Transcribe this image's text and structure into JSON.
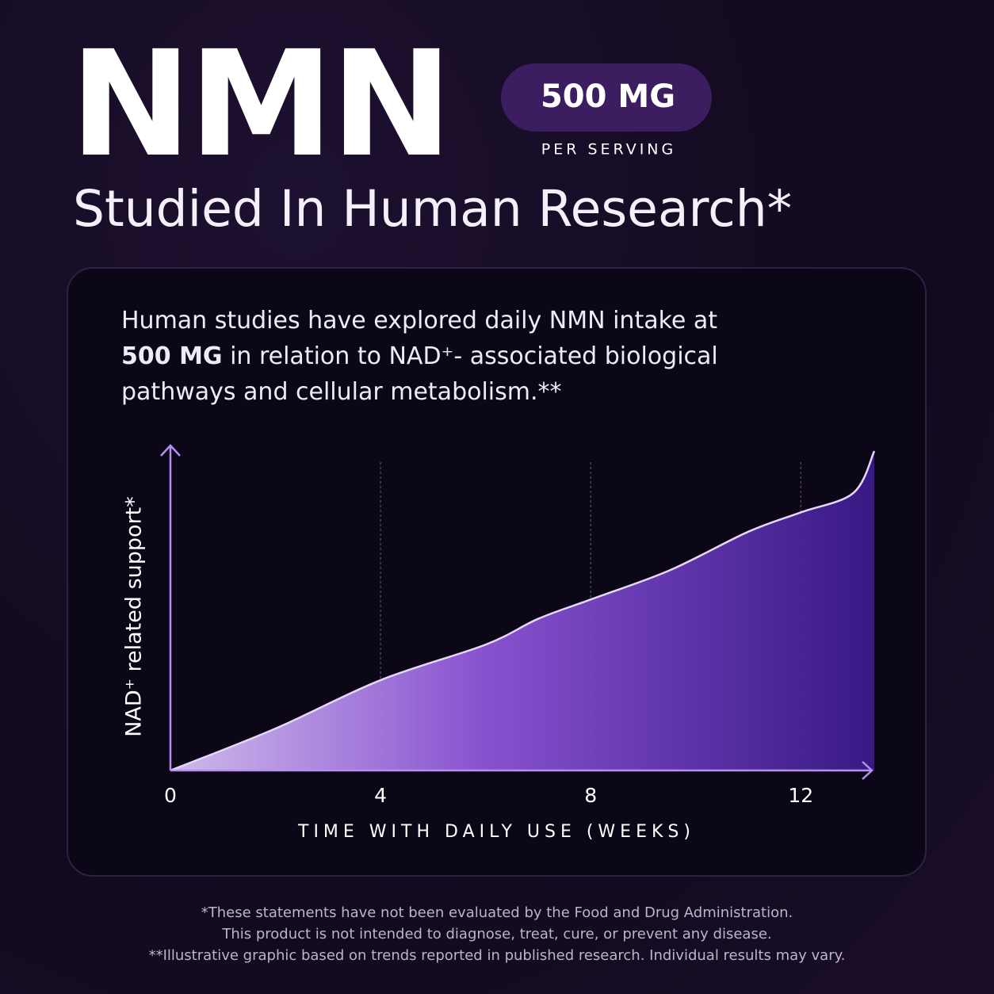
{
  "header": {
    "title": "NMN",
    "badge": "500 MG",
    "badge_caption": "PER SERVING",
    "subtitle": "Studied In Human Research*"
  },
  "paragraph": [
    "Human studies have explored daily NMN intake at ",
    "500 MG",
    " in relation to NAD⁺- associated biological pathways and cellular metabolism.**"
  ],
  "chart_data": {
    "type": "area",
    "x": [
      0,
      2,
      4,
      6,
      7,
      8,
      9.5,
      11,
      12,
      13,
      13.4
    ],
    "values": [
      0,
      13,
      28,
      39,
      47,
      53,
      62,
      74,
      80,
      86,
      99
    ],
    "xlim": [
      0,
      13.4
    ],
    "xticks": [
      0,
      4,
      8,
      12
    ],
    "ylim": [
      0,
      100
    ],
    "grid": true,
    "color": "#7b45d6",
    "xlabel": "TIME WITH DAILY USE (WEEKS)",
    "ylabel": "NAD⁺ related support*"
  },
  "footnotes": [
    "*These statements have not been evaluated by the Food and Drug Administration.",
    "This product is not intended to diagnose, treat, cure, or prevent any disease.",
    "**Illustrative graphic based on trends reported in published research. Individual results may vary."
  ]
}
